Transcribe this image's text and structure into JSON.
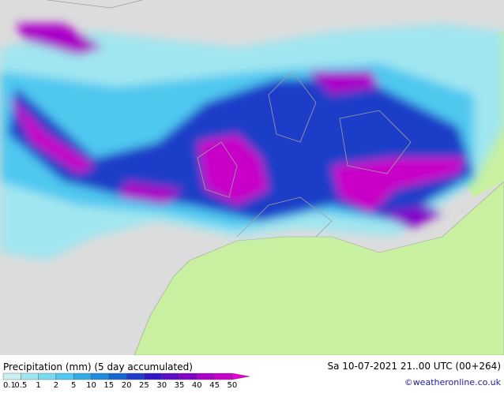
{
  "caption": "Precipitation (mm) (5 day accumulated)",
  "valid_time": "Sa 10-07-2021 21..00 UTC (00+264)",
  "credit": "©weatheronline.co.uk",
  "legend": [
    {
      "label": "0.1",
      "color": "#c8f0f0"
    },
    {
      "label": "0.5",
      "color": "#a0e6f0"
    },
    {
      "label": "1",
      "color": "#78dcf0"
    },
    {
      "label": "2",
      "color": "#50c8f0"
    },
    {
      "label": "5",
      "color": "#32aae6"
    },
    {
      "label": "10",
      "color": "#1e8cdc"
    },
    {
      "label": "15",
      "color": "#1464d2"
    },
    {
      "label": "20",
      "color": "#1e3cc8"
    },
    {
      "label": "25",
      "color": "#3214c8"
    },
    {
      "label": "30",
      "color": "#5a0ac8"
    },
    {
      "label": "35",
      "color": "#8200c8"
    },
    {
      "label": "40",
      "color": "#aa00c8"
    },
    {
      "label": "45",
      "color": "#c800c8"
    },
    {
      "label": "50",
      "color": "#e600d2"
    }
  ]
}
